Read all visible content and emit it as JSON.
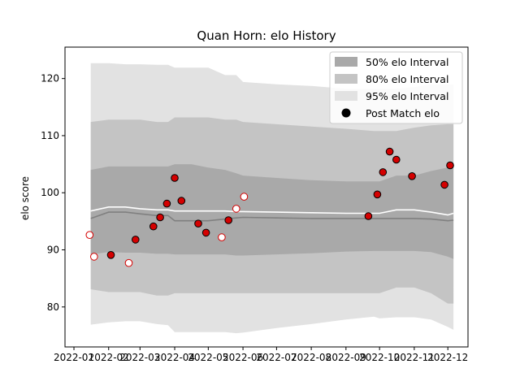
{
  "chart_data": {
    "type": "line",
    "title": "Quan Horn: elo History",
    "xlabel": "",
    "ylabel": "elo score",
    "xlim": [
      "2021-12-24",
      "2022-12-19"
    ],
    "ylim": [
      73,
      125.5
    ],
    "x_ticks": [
      "2022-01",
      "2022-02",
      "2022-03",
      "2022-04",
      "2022-05",
      "2022-06",
      "2022-07",
      "2022-08",
      "2022-09",
      "2022-10",
      "2022-11",
      "2022-12"
    ],
    "y_ticks": [
      80,
      90,
      100,
      110,
      120
    ],
    "grid": false,
    "legend_position": "top-right",
    "legend": {
      "band50": "50% elo Interval",
      "band80": "80% elo Interval",
      "band95": "95% elo Interval",
      "points": "Post Match elo"
    },
    "colors": {
      "band50": "#a9a9a9",
      "band80": "#c4c4c4",
      "band95": "#e2e2e2",
      "mean_line": "#ffffff",
      "median_line": "#808080",
      "point_fill_win": "#d40000",
      "point_edge_win": "#000000",
      "point_fill_loss": "#ffffff",
      "point_edge_loss": "#d40000"
    },
    "bands": {
      "dates": [
        "2022-01-16",
        "2022-02-01",
        "2022-02-16",
        "2022-03-01",
        "2022-03-16",
        "2022-03-26",
        "2022-04-01",
        "2022-04-16",
        "2022-05-01",
        "2022-05-16",
        "2022-05-26",
        "2022-06-01",
        "2022-07-01",
        "2022-08-01",
        "2022-09-01",
        "2022-09-26",
        "2022-10-01",
        "2022-10-16",
        "2022-11-01",
        "2022-11-16",
        "2022-12-01",
        "2022-12-06"
      ],
      "lower95": [
        76.9,
        77.3,
        77.5,
        77.5,
        77.0,
        76.8,
        75.6,
        75.6,
        75.6,
        75.6,
        75.4,
        75.5,
        76.3,
        77.0,
        77.8,
        78.3,
        78.0,
        78.2,
        78.2,
        77.8,
        76.5,
        76.0
      ],
      "upper95": [
        122.7,
        122.7,
        122.5,
        122.5,
        122.4,
        122.4,
        121.9,
        121.9,
        121.9,
        120.6,
        120.6,
        119.4,
        119.0,
        118.7,
        118.2,
        118.2,
        118.2,
        118.2,
        118.5,
        119.0,
        119.0,
        119.0
      ],
      "lower80": [
        83.1,
        82.6,
        82.6,
        82.6,
        82.0,
        82.0,
        82.4,
        82.4,
        82.4,
        82.4,
        82.4,
        82.4,
        82.4,
        82.4,
        82.4,
        82.4,
        82.4,
        83.4,
        83.4,
        82.4,
        80.6,
        80.6
      ],
      "upper80": [
        112.4,
        112.8,
        112.8,
        112.8,
        112.4,
        112.4,
        113.2,
        113.2,
        113.2,
        112.8,
        112.8,
        112.4,
        112.0,
        111.6,
        111.2,
        110.8,
        110.8,
        110.8,
        111.4,
        111.8,
        112.0,
        112.0
      ],
      "lower50": [
        89.2,
        89.6,
        89.5,
        89.5,
        89.3,
        89.3,
        89.2,
        89.2,
        89.2,
        89.2,
        89.0,
        89.0,
        89.2,
        89.4,
        89.7,
        89.8,
        89.8,
        89.8,
        89.8,
        89.6,
        88.8,
        88.4
      ],
      "upper50": [
        104.0,
        104.6,
        104.6,
        104.6,
        104.6,
        104.6,
        105.0,
        105.0,
        104.4,
        104.0,
        103.4,
        103.0,
        102.6,
        102.2,
        102.0,
        102.0,
        102.0,
        103.0,
        103.0,
        103.8,
        104.4,
        104.7
      ],
      "mean": [
        96.8,
        97.5,
        97.5,
        97.2,
        97.0,
        97.0,
        96.8,
        96.8,
        96.8,
        96.8,
        96.7,
        96.7,
        96.6,
        96.5,
        96.4,
        96.4,
        96.4,
        97.0,
        97.0,
        96.6,
        96.1,
        96.4
      ],
      "median": [
        95.5,
        96.6,
        96.6,
        96.3,
        96.0,
        96.0,
        95.1,
        95.1,
        95.1,
        95.4,
        95.6,
        95.7,
        95.6,
        95.5,
        95.5,
        95.5,
        95.5,
        95.5,
        95.5,
        95.4,
        95.1,
        95.2
      ]
    },
    "points": [
      {
        "x": "2022-01-15",
        "y": 92.6,
        "win": false
      },
      {
        "x": "2022-01-19",
        "y": 88.8,
        "win": false
      },
      {
        "x": "2022-02-03",
        "y": 89.1,
        "win": true
      },
      {
        "x": "2022-02-19",
        "y": 87.7,
        "win": false
      },
      {
        "x": "2022-02-25",
        "y": 91.8,
        "win": true
      },
      {
        "x": "2022-03-13",
        "y": 94.1,
        "win": true
      },
      {
        "x": "2022-03-19",
        "y": 95.7,
        "win": true
      },
      {
        "x": "2022-03-25",
        "y": 98.1,
        "win": true
      },
      {
        "x": "2022-04-01",
        "y": 102.6,
        "win": true
      },
      {
        "x": "2022-04-07",
        "y": 98.6,
        "win": true
      },
      {
        "x": "2022-04-22",
        "y": 94.6,
        "win": true
      },
      {
        "x": "2022-04-29",
        "y": 93.0,
        "win": true
      },
      {
        "x": "2022-05-13",
        "y": 92.2,
        "win": false
      },
      {
        "x": "2022-05-19",
        "y": 95.2,
        "win": true
      },
      {
        "x": "2022-05-26",
        "y": 97.2,
        "win": false
      },
      {
        "x": "2022-06-02",
        "y": 99.3,
        "win": false
      },
      {
        "x": "2022-09-21",
        "y": 95.9,
        "win": true
      },
      {
        "x": "2022-09-29",
        "y": 99.7,
        "win": true
      },
      {
        "x": "2022-10-04",
        "y": 103.6,
        "win": true
      },
      {
        "x": "2022-10-10",
        "y": 107.2,
        "win": true
      },
      {
        "x": "2022-10-16",
        "y": 105.8,
        "win": true
      },
      {
        "x": "2022-10-30",
        "y": 102.9,
        "win": true
      },
      {
        "x": "2022-11-28",
        "y": 101.4,
        "win": true
      },
      {
        "x": "2022-12-03",
        "y": 104.8,
        "win": true
      }
    ]
  }
}
